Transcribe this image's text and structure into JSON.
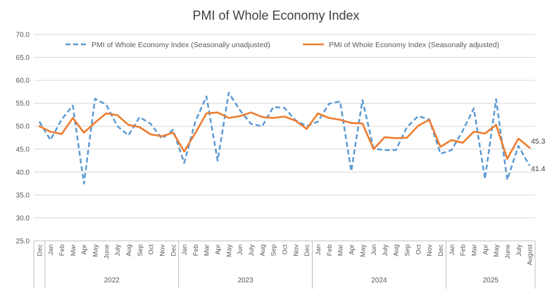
{
  "chart_data": {
    "type": "line",
    "title": "PMI of Whole Economy Index",
    "xlabel": "",
    "ylabel": "",
    "ylim": [
      25.0,
      70.0
    ],
    "y_ticks": [
      "70.0",
      "65.0",
      "60.0",
      "55.0",
      "50.0",
      "45.0",
      "40.0",
      "35.0",
      "30.0",
      "25.0"
    ],
    "grid": true,
    "legend_position": "top",
    "categories": [
      "Dec",
      "Jan",
      "Feb",
      "Mar",
      "Apr",
      "May",
      "June",
      "July",
      "Aug",
      "Sep",
      "Oct",
      "Nov",
      "Dec",
      "Jan",
      "Feb",
      "Mar",
      "Apr",
      "May",
      "Jun",
      "July",
      "Aug",
      "Sep",
      "Oct",
      "Nov",
      "Dec",
      "Jan",
      "Feb",
      "Mar",
      "Apr",
      "May",
      "Jun",
      "July",
      "Aug",
      "Sep",
      "Oct",
      "Nov",
      "Dec",
      "Jan",
      "Feb",
      "Mar",
      "Apr",
      "May",
      "June",
      "July",
      "August"
    ],
    "year_groups": [
      {
        "label": "",
        "start": 0,
        "count": 1
      },
      {
        "label": "2022",
        "start": 1,
        "count": 12
      },
      {
        "label": "2023",
        "start": 13,
        "count": 12
      },
      {
        "label": "2024",
        "start": 25,
        "count": 12
      },
      {
        "label": "2025",
        "start": 37,
        "count": 8
      }
    ],
    "series": [
      {
        "name": "PMI of Whole Economy Index (Seasonally unadjusted)",
        "color": "#5b9bd5",
        "dash": true,
        "values": [
          51.0,
          47.0,
          51.5,
          54.5,
          37.5,
          56.0,
          54.7,
          50.0,
          48.0,
          52.0,
          50.5,
          47.3,
          49.2,
          42.0,
          51.0,
          56.5,
          42.5,
          57.3,
          53.5,
          50.5,
          50.0,
          54.2,
          54.0,
          51.3,
          50.0,
          51.0,
          54.9,
          55.4,
          40.2,
          55.7,
          45.1,
          44.8,
          44.8,
          49.8,
          52.2,
          51.5,
          44.0,
          44.8,
          49.0,
          53.9,
          38.5,
          55.9,
          38.3,
          45.7,
          41.4
        ]
      },
      {
        "name": "PMI of Whole Economy Index (Seasonally adjusted)",
        "color": "#ed7d31",
        "dash": false,
        "values": [
          50.0,
          48.8,
          48.3,
          51.8,
          48.6,
          50.8,
          52.8,
          52.4,
          50.3,
          49.8,
          48.2,
          47.8,
          48.6,
          44.5,
          48.5,
          52.8,
          53.0,
          51.8,
          52.2,
          53.0,
          52.0,
          51.8,
          52.1,
          51.2,
          49.4,
          52.8,
          51.8,
          51.4,
          50.7,
          50.6,
          45.0,
          47.6,
          47.4,
          47.5,
          50.1,
          51.4,
          45.5,
          47.0,
          46.4,
          48.8,
          48.4,
          50.3,
          42.9,
          47.3,
          45.3
        ]
      }
    ],
    "end_labels": [
      {
        "series": 1,
        "text": "45.3"
      },
      {
        "series": 0,
        "text": "41.4"
      }
    ]
  }
}
